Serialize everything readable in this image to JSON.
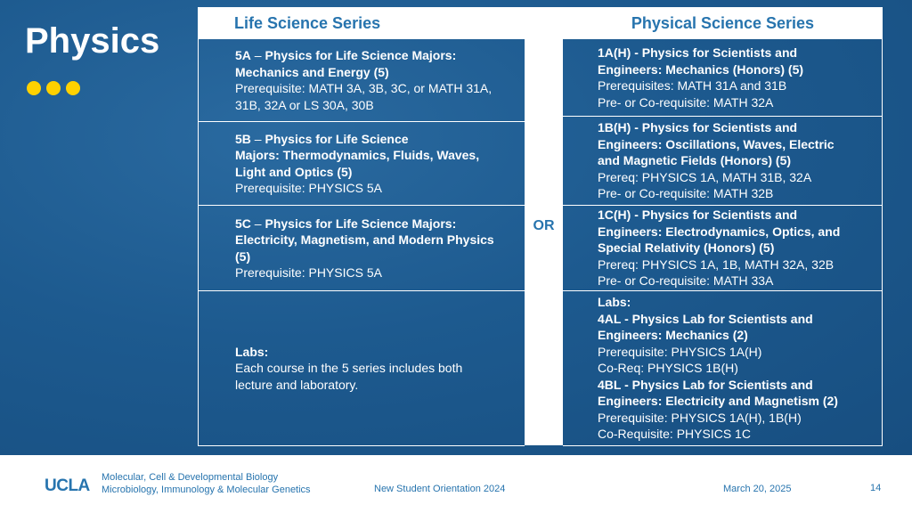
{
  "slide": {
    "title": "Physics",
    "page_number": "14"
  },
  "colors": {
    "background": "#1e5a8e",
    "accent_yellow": "#ffd100",
    "ucla_blue": "#2774ae"
  },
  "table": {
    "left_header": "Life Science Series",
    "right_header": "Physical Science Series",
    "or_label": "OR",
    "left": [
      {
        "code": "5A",
        "dash": " – ",
        "title_lines": [
          "Physics for Life Science Majors:",
          "Mechanics and Energy (5)"
        ],
        "detail_lines": [
          "Prerequisite: MATH 3A, 3B, 3C, or MATH  31A,",
          "31B, 32A or LS 30A, 30B"
        ]
      },
      {
        "code": "5B",
        "dash": " – ",
        "title_lines": [
          "Physics for Life Science",
          "Majors: Thermodynamics, Fluids, Waves,",
          "Light and Optics (5)"
        ],
        "detail_lines": [
          "Prerequisite: PHYSICS 5A"
        ]
      },
      {
        "code": "5C",
        "dash": " – ",
        "title_lines": [
          "Physics for Life Science Majors:",
          "Electricity, Magnetism, and Modern Physics",
          "(5)"
        ],
        "detail_lines": [
          "Prerequisite: PHYSICS 5A"
        ]
      },
      {
        "labs_title": "Labs:",
        "labs_lines": [
          "Each course in the 5 series includes both",
          "lecture and laboratory."
        ]
      }
    ],
    "right": [
      {
        "title_lines": [
          "1A(H) - Physics for Scientists and",
          "Engineers: Mechanics (Honors) (5)"
        ],
        "detail_lines": [
          "Prerequisites: MATH 31A and 31B",
          "Pre- or Co-requisite: MATH 32A"
        ]
      },
      {
        "title_lines": [
          "1B(H) - Physics for Scientists and",
          "Engineers: Oscillations, Waves, Electric",
          "and Magnetic Fields (Honors) (5)"
        ],
        "detail_lines": [
          "Prereq: PHYSICS 1A, MATH 31B, 32A",
          "Pre- or Co-requisite: MATH 32B"
        ]
      },
      {
        "title_lines": [
          "1C(H) - Physics for Scientists and",
          "Engineers: Electrodynamics, Optics, and",
          "Special Relativity (Honors) (5)"
        ],
        "detail_lines": [
          "Prereq: PHYSICS 1A, 1B, MATH 32A, 32B",
          "Pre- or Co-requisite: MATH 33A"
        ]
      },
      {
        "labs_title": "Labs:",
        "lab1_title_lines": [
          "4AL - Physics Lab for Scientists and",
          "Engineers: Mechanics (2)"
        ],
        "lab1_detail_lines": [
          "Prerequisite: PHYSICS 1A(H)",
          "Co-Req: PHYSICS 1B(H)"
        ],
        "lab2_title_lines": [
          "4BL - Physics Lab for Scientists and",
          "Engineers: Electricity and Magnetism (2)"
        ],
        "lab2_detail_lines": [
          "Prerequisite: PHYSICS 1A(H), 1B(H)",
          "Co-Requisite: PHYSICS 1C"
        ]
      }
    ]
  },
  "footer": {
    "logo": "UCLA",
    "dept_line1": "Molecular, Cell & Developmental Biology",
    "dept_line2": "Microbiology, Immunology & Molecular Genetics",
    "event": "New Student Orientation 2024",
    "date": "March 20, 2025"
  }
}
